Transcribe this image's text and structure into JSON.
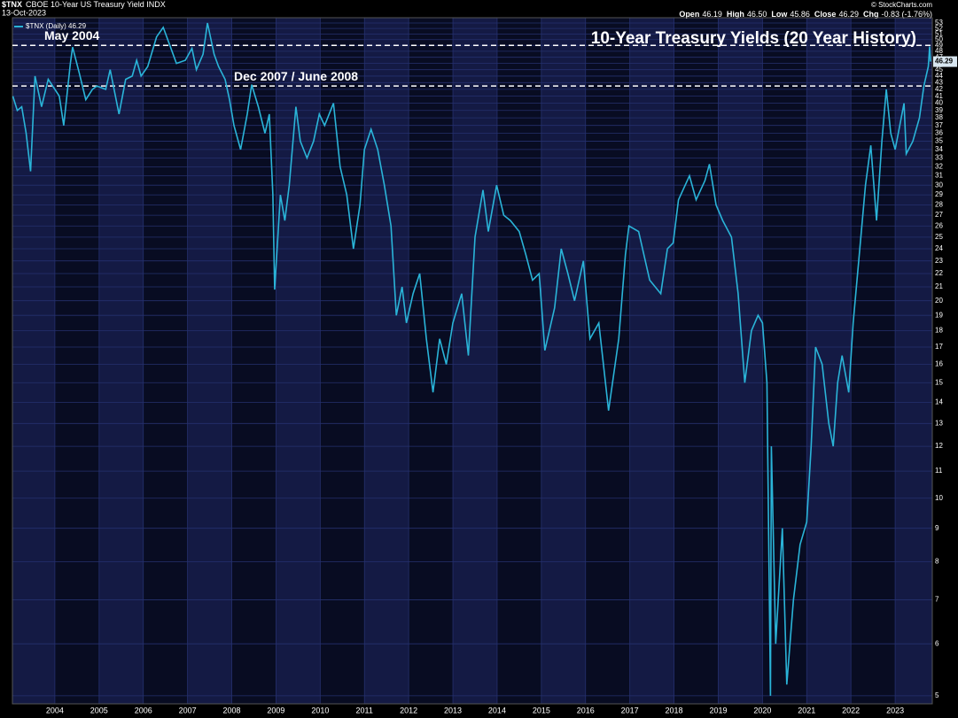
{
  "chart_data": {
    "type": "line",
    "symbol": "$TNX",
    "title": "CBOE 10-Year US Treasury Yield INDX",
    "date": "13-Oct-2023",
    "source": "© StockCharts.com",
    "quote": [
      {
        "label": "Open",
        "value": "46.19"
      },
      {
        "label": "High",
        "value": "46.50"
      },
      {
        "label": "Low",
        "value": "45.86"
      },
      {
        "label": "Close",
        "value": "46.29"
      },
      {
        "label": "Chg",
        "value": "-0.83 (-1.76%)"
      }
    ],
    "annotation_title": "10-Year Treasury Yields (20 Year History)",
    "reference_lines": [
      {
        "value": 49,
        "label": "May 2004"
      },
      {
        "value": 42.5,
        "label": "Dec 2007 / June 2008"
      }
    ],
    "log_scale": true,
    "grid": true,
    "x": [
      2003.05,
      2003.15,
      2003.25,
      2003.35,
      2003.45,
      2003.55,
      2003.7,
      2003.85,
      2003.95,
      2004.1,
      2004.2,
      2004.35,
      2004.4,
      2004.55,
      2004.7,
      2004.85,
      2004.95,
      2005.15,
      2005.25,
      2005.45,
      2005.6,
      2005.75,
      2005.85,
      2005.95,
      2006.1,
      2006.3,
      2006.45,
      2006.6,
      2006.75,
      2006.95,
      2007.1,
      2007.2,
      2007.35,
      2007.45,
      2007.6,
      2007.7,
      2007.85,
      2007.95,
      2008.05,
      2008.2,
      2008.35,
      2008.45,
      2008.6,
      2008.75,
      2008.85,
      2008.93,
      2008.97,
      2009.1,
      2009.2,
      2009.3,
      2009.45,
      2009.55,
      2009.7,
      2009.85,
      2009.98,
      2010.1,
      2010.3,
      2010.45,
      2010.6,
      2010.75,
      2010.9,
      2011.0,
      2011.15,
      2011.3,
      2011.45,
      2011.6,
      2011.72,
      2011.85,
      2011.95,
      2012.1,
      2012.25,
      2012.4,
      2012.55,
      2012.7,
      2012.85,
      2013.0,
      2013.2,
      2013.35,
      2013.5,
      2013.68,
      2013.8,
      2013.99,
      2014.15,
      2014.3,
      2014.5,
      2014.65,
      2014.8,
      2014.95,
      2015.08,
      2015.3,
      2015.45,
      2015.6,
      2015.75,
      2015.95,
      2016.1,
      2016.3,
      2016.52,
      2016.75,
      2016.9,
      2016.98,
      2017.2,
      2017.45,
      2017.7,
      2017.85,
      2017.98,
      2018.1,
      2018.35,
      2018.5,
      2018.7,
      2018.8,
      2018.95,
      2019.1,
      2019.3,
      2019.45,
      2019.6,
      2019.75,
      2019.9,
      2020.0,
      2020.1,
      2020.18,
      2020.2,
      2020.3,
      2020.45,
      2020.55,
      2020.7,
      2020.85,
      2021.0,
      2021.1,
      2021.2,
      2021.35,
      2021.5,
      2021.6,
      2021.7,
      2021.8,
      2021.95,
      2022.05,
      2022.2,
      2022.33,
      2022.45,
      2022.58,
      2022.7,
      2022.8,
      2022.9,
      2023.0,
      2023.2,
      2023.25,
      2023.4,
      2023.55,
      2023.65,
      2023.75,
      2023.78,
      2023.8
    ],
    "series": [
      {
        "name": "$TNX (Daily) 46.29",
        "color": "#2ab4d8",
        "values": [
          41,
          39,
          39.5,
          36,
          31.5,
          44,
          39.5,
          43.5,
          42.5,
          41,
          37,
          46,
          48.7,
          44.5,
          40.5,
          42,
          42.5,
          42,
          45,
          38.5,
          43.5,
          44,
          46.5,
          44,
          45.5,
          50.5,
          52.2,
          49,
          46,
          46.5,
          48.5,
          45,
          47.5,
          53,
          47.5,
          45.5,
          43.5,
          40.5,
          37,
          34,
          38.5,
          42.7,
          39.5,
          36,
          38.5,
          29,
          20.8,
          29,
          26.5,
          30,
          39.5,
          35,
          33,
          35,
          38.5,
          37,
          40,
          32,
          29,
          24,
          28,
          34,
          36.5,
          34,
          30,
          26,
          19,
          21,
          18.5,
          20.5,
          22,
          17.5,
          14.5,
          17.5,
          16,
          18.5,
          20.5,
          16.5,
          25,
          29.5,
          25.5,
          30,
          27,
          26.5,
          25.5,
          23.5,
          21.5,
          22,
          16.8,
          19.5,
          24,
          22,
          20,
          23,
          17.5,
          18.5,
          13.6,
          17.5,
          23.5,
          26,
          25.5,
          21.5,
          20.5,
          24,
          24.5,
          28.5,
          31,
          28.5,
          30.5,
          32.3,
          28,
          26.5,
          25,
          20.5,
          15,
          18,
          19,
          18.5,
          15,
          5,
          12,
          6,
          9,
          5.2,
          7,
          8.5,
          9.2,
          12,
          17,
          16,
          13,
          12,
          15,
          16.5,
          14.5,
          18.5,
          24,
          30,
          34.5,
          26.5,
          35,
          42,
          36,
          34,
          40,
          33.5,
          35,
          38,
          42.5,
          45.5,
          48.8,
          46.29
        ]
      }
    ],
    "xlim": [
      2003.04,
      2023.84
    ],
    "xticks": [
      2004,
      2005,
      2006,
      2007,
      2008,
      2009,
      2010,
      2011,
      2012,
      2013,
      2014,
      2015,
      2016,
      2017,
      2018,
      2019,
      2020,
      2021,
      2022,
      2023
    ],
    "ylim": [
      4.86,
      54
    ],
    "yticks": [
      5,
      6,
      7,
      8,
      9,
      10,
      11,
      12,
      13,
      14,
      15,
      16,
      17,
      18,
      19,
      20,
      21,
      22,
      23,
      24,
      25,
      26,
      27,
      28,
      29,
      30,
      31,
      32,
      33,
      34,
      35,
      36,
      37,
      38,
      39,
      40,
      41,
      42,
      43,
      44,
      45,
      46,
      47,
      48,
      49,
      50,
      51,
      52,
      53
    ]
  }
}
